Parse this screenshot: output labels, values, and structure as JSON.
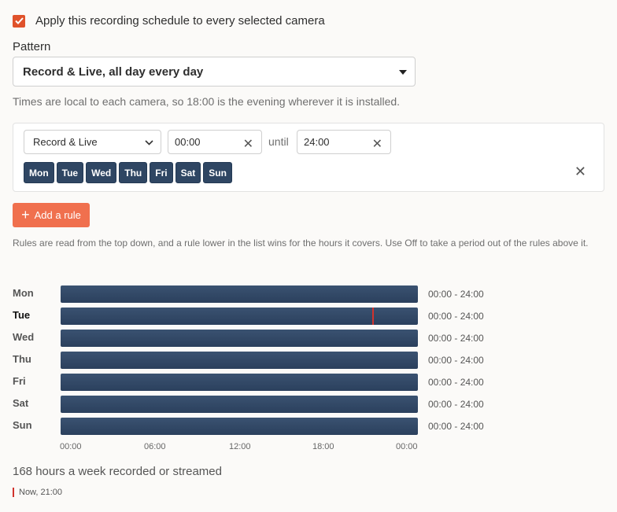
{
  "apply": {
    "checked": true,
    "label": "Apply this recording schedule to every selected camera"
  },
  "pattern": {
    "label": "Pattern",
    "selected": "Record & Live, all day every day"
  },
  "hint": "Times are local to each camera, so 18:00 is the evening wherever it is installed.",
  "rule": {
    "mode": "Record & Live",
    "start": "00:00",
    "until_label": "until",
    "end": "24:00",
    "days": [
      "Mon",
      "Tue",
      "Wed",
      "Thu",
      "Fri",
      "Sat",
      "Sun"
    ]
  },
  "add_rule_label": "Add a rule",
  "rules_note": "Rules are read from the top down, and a rule lower in the list wins for the hours it covers. Use Off to take a period out of the rules above it.",
  "timeline": {
    "rows": [
      {
        "day": "Mon",
        "range": "00:00 - 24:00",
        "start_hour": 0,
        "end_hour": 24
      },
      {
        "day": "Tue",
        "range": "00:00 - 24:00",
        "start_hour": 0,
        "end_hour": 24
      },
      {
        "day": "Wed",
        "range": "00:00 - 24:00",
        "start_hour": 0,
        "end_hour": 24
      },
      {
        "day": "Thu",
        "range": "00:00 - 24:00",
        "start_hour": 0,
        "end_hour": 24
      },
      {
        "day": "Fri",
        "range": "00:00 - 24:00",
        "start_hour": 0,
        "end_hour": 24
      },
      {
        "day": "Sat",
        "range": "00:00 - 24:00",
        "start_hour": 0,
        "end_hour": 24
      },
      {
        "day": "Sun",
        "range": "00:00 - 24:00",
        "start_hour": 0,
        "end_hour": 24
      }
    ],
    "ticks": [
      "00:00",
      "06:00",
      "12:00",
      "18:00",
      "00:00"
    ],
    "today": "Tue",
    "now_hour": 21
  },
  "summary": "168 hours a week recorded or streamed",
  "now_legend": "Now, 21:00",
  "colors": {
    "accent": "#e0522b",
    "add_rule": "#f0704e",
    "day_button": "#2f4663",
    "bar": "#2f4663",
    "now_marker": "#d1332d"
  }
}
